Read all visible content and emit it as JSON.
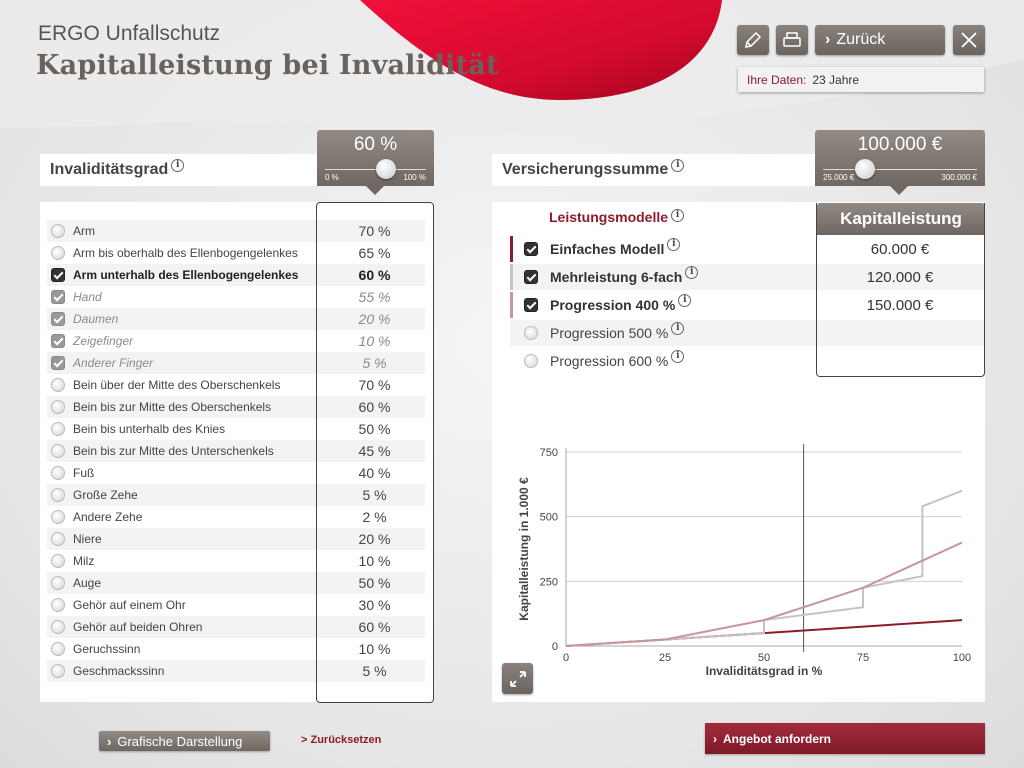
{
  "header": {
    "brand": "ERGO Unfallschutz",
    "title": "Kapitalleistung bei Invalidität"
  },
  "toolbar": {
    "edit_icon": "pencil-icon",
    "print_icon": "printer-icon",
    "back_label": "Zurück",
    "close_icon": "close-icon",
    "user_label": "Ihre Daten:",
    "user_value": "23 Jahre"
  },
  "left_panel": {
    "title": "Invaliditätsgrad",
    "slider": {
      "value_text": "60 %",
      "min_label": "0 %",
      "max_label": "100 %",
      "level": 0.6
    },
    "rows": [
      {
        "label": "Arm",
        "value": "70 %",
        "state": "off"
      },
      {
        "label": "Arm bis oberhalb des Ellenbogengelenkes",
        "value": "65 %",
        "state": "off"
      },
      {
        "label": "Arm unterhalb des Ellenbogengelenkes",
        "value": "60 %",
        "state": "on"
      },
      {
        "label": "Hand",
        "value": "55 %",
        "state": "implied"
      },
      {
        "label": "Daumen",
        "value": "20 %",
        "state": "implied"
      },
      {
        "label": "Zeigefinger",
        "value": "10 %",
        "state": "implied"
      },
      {
        "label": "Anderer Finger",
        "value": "5 %",
        "state": "implied"
      },
      {
        "label": "Bein über der Mitte des Oberschenkels",
        "value": "70 %",
        "state": "off"
      },
      {
        "label": "Bein bis zur Mitte des Oberschenkels",
        "value": "60 %",
        "state": "off"
      },
      {
        "label": "Bein bis unterhalb des Knies",
        "value": "50 %",
        "state": "off"
      },
      {
        "label": "Bein bis zur Mitte des Unterschenkels",
        "value": "45 %",
        "state": "off"
      },
      {
        "label": "Fuß",
        "value": "40 %",
        "state": "off"
      },
      {
        "label": "Große Zehe",
        "value": "5 %",
        "state": "off"
      },
      {
        "label": "Andere Zehe",
        "value": "2 %",
        "state": "off"
      },
      {
        "label": "Niere",
        "value": "20 %",
        "state": "off"
      },
      {
        "label": "Milz",
        "value": "10 %",
        "state": "off"
      },
      {
        "label": "Auge",
        "value": "50 %",
        "state": "off"
      },
      {
        "label": "Gehör auf einem Ohr",
        "value": "30 %",
        "state": "off"
      },
      {
        "label": "Gehör auf beiden Ohren",
        "value": "60 %",
        "state": "off"
      },
      {
        "label": "Geruchssinn",
        "value": "10 %",
        "state": "off"
      },
      {
        "label": "Geschmackssinn",
        "value": "5 %",
        "state": "off"
      }
    ]
  },
  "right_panel": {
    "title": "Versicherungssumme",
    "slider": {
      "value_text": "100.000 €",
      "min_label": "25.000 €",
      "max_label": "300.000 €",
      "level": 0.27
    },
    "models_header": "Leistungsmodelle",
    "kap_header": "Kapitalleistung",
    "models": [
      {
        "label": "Einfaches Modell",
        "value": "60.000 €",
        "checked": true,
        "bar": "#8d1b2c"
      },
      {
        "label": "Mehrleistung 6-fach",
        "value": "120.000 €",
        "checked": true,
        "bar": "#c4c4c4"
      },
      {
        "label": "Progression 400 %",
        "value": "150.000 €",
        "checked": true,
        "bar": "#c9969a"
      },
      {
        "label": "Progression 500 %",
        "value": "",
        "checked": false,
        "bar": ""
      },
      {
        "label": "Progression 600 %",
        "value": "",
        "checked": false,
        "bar": ""
      }
    ],
    "expand_icon": "expand-icon"
  },
  "chart_data": {
    "type": "line",
    "xlabel": "Invaliditätsgrad in %",
    "ylabel": "Kapitalleistung in 1.000 €",
    "xlim": [
      0,
      100
    ],
    "ylim": [
      0,
      750
    ],
    "xticks": [
      0,
      25,
      50,
      75,
      100
    ],
    "yticks": [
      0,
      250,
      500,
      750
    ],
    "grid": true,
    "marker_x": 60,
    "series": [
      {
        "color": "#8d1b2c",
        "x": [
          0,
          100
        ],
        "y": [
          0,
          100
        ]
      },
      {
        "color": "#c4c4c4",
        "x": [
          0,
          50,
          50,
          75,
          75,
          90,
          90,
          100
        ],
        "y": [
          0,
          50,
          100,
          150,
          225,
          270,
          540,
          600
        ]
      },
      {
        "color": "#c9969a",
        "x": [
          0,
          25,
          50,
          75,
          100
        ],
        "y": [
          0,
          25,
          100,
          225,
          400
        ]
      }
    ]
  },
  "footer": {
    "graph_button": "Grafische Darstellung",
    "reset_link": "> Zurücksetzen",
    "offer_button": "Angebot anfordern"
  }
}
